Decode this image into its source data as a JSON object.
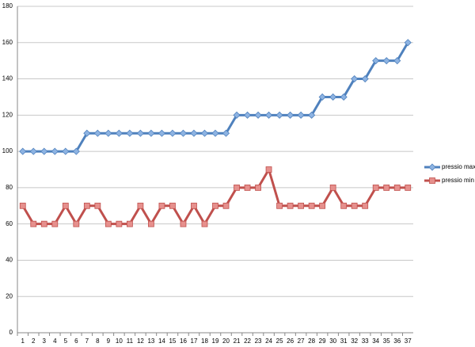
{
  "chart_data": {
    "type": "line",
    "categories": [
      "1",
      "2",
      "3",
      "4",
      "5",
      "6",
      "7",
      "8",
      "9",
      "10",
      "11",
      "12",
      "13",
      "14",
      "15",
      "16",
      "17",
      "18",
      "19",
      "20",
      "21",
      "22",
      "23",
      "24",
      "25",
      "26",
      "27",
      "28",
      "29",
      "30",
      "31",
      "32",
      "33",
      "34",
      "35",
      "36",
      "37"
    ],
    "series": [
      {
        "name": "pressio max",
        "color": "#4f81bd",
        "marker": "diamond",
        "values": [
          100,
          100,
          100,
          100,
          100,
          100,
          110,
          110,
          110,
          110,
          110,
          110,
          110,
          110,
          110,
          110,
          110,
          110,
          110,
          110,
          120,
          120,
          120,
          120,
          120,
          120,
          120,
          120,
          130,
          130,
          130,
          140,
          140,
          150,
          150,
          150,
          160
        ]
      },
      {
        "name": "pressio min",
        "color": "#c0504d",
        "marker": "square",
        "values": [
          70,
          60,
          60,
          60,
          70,
          60,
          70,
          70,
          60,
          60,
          60,
          70,
          60,
          70,
          70,
          60,
          70,
          60,
          70,
          70,
          80,
          80,
          80,
          90,
          70,
          70,
          70,
          70,
          70,
          80,
          70,
          70,
          70,
          80,
          80,
          80,
          80
        ]
      }
    ],
    "ylim": [
      0,
      180
    ],
    "yticks": [
      0,
      20,
      40,
      60,
      80,
      100,
      120,
      140,
      160,
      180
    ],
    "grid": true,
    "legend": "right"
  }
}
